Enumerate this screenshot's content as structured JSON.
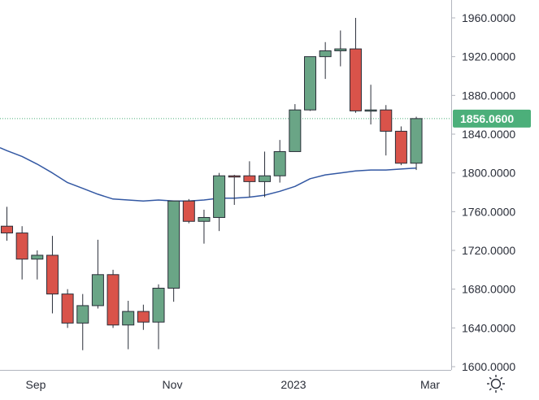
{
  "chart_data": {
    "type": "candlestick",
    "title": "",
    "xlabel": "",
    "ylabel": "",
    "ylim": [
      1600,
      1980
    ],
    "y_ticks": [
      "1960.0000",
      "1920.0000",
      "1880.0000",
      "1840.0000",
      "1800.0000",
      "1760.0000",
      "1720.0000",
      "1680.0000",
      "1640.0000",
      "1600.0000"
    ],
    "x_ticks": [
      "Sep",
      "Nov",
      "2023",
      "Mar"
    ],
    "last_price": {
      "value": 1856.06,
      "label": "1856.0600"
    },
    "colors": {
      "up": "#6aa586",
      "down": "#d9534a",
      "ma_line": "#3358a3",
      "last_price": "#4caf7a",
      "axis": "#b2b5be",
      "text": "#2a2e39"
    },
    "candles": [
      {
        "open": 1745,
        "high": 1765,
        "low": 1730,
        "close": 1738
      },
      {
        "open": 1738,
        "high": 1745,
        "low": 1690,
        "close": 1711
      },
      {
        "open": 1711,
        "high": 1720,
        "low": 1690,
        "close": 1715
      },
      {
        "open": 1715,
        "high": 1735,
        "low": 1655,
        "close": 1675
      },
      {
        "open": 1675,
        "high": 1680,
        "low": 1640,
        "close": 1645
      },
      {
        "open": 1645,
        "high": 1675,
        "low": 1617,
        "close": 1663
      },
      {
        "open": 1663,
        "high": 1731,
        "low": 1660,
        "close": 1695
      },
      {
        "open": 1695,
        "high": 1700,
        "low": 1640,
        "close": 1643
      },
      {
        "open": 1643,
        "high": 1668,
        "low": 1618,
        "close": 1657
      },
      {
        "open": 1657,
        "high": 1664,
        "low": 1638,
        "close": 1646
      },
      {
        "open": 1646,
        "high": 1685,
        "low": 1618,
        "close": 1681
      },
      {
        "open": 1681,
        "high": 1771,
        "low": 1667,
        "close": 1771
      },
      {
        "open": 1771,
        "high": 1773,
        "low": 1748,
        "close": 1750
      },
      {
        "open": 1750,
        "high": 1762,
        "low": 1727,
        "close": 1754
      },
      {
        "open": 1754,
        "high": 1800,
        "low": 1740,
        "close": 1797
      },
      {
        "open": 1797,
        "high": 1798,
        "low": 1767,
        "close": 1796
      },
      {
        "open": 1797,
        "high": 1812,
        "low": 1775,
        "close": 1791
      },
      {
        "open": 1791,
        "high": 1822,
        "low": 1775,
        "close": 1797
      },
      {
        "open": 1797,
        "high": 1834,
        "low": 1790,
        "close": 1822
      },
      {
        "open": 1822,
        "high": 1871,
        "low": 1822,
        "close": 1865
      },
      {
        "open": 1865,
        "high": 1920,
        "low": 1864,
        "close": 1920
      },
      {
        "open": 1920,
        "high": 1935,
        "low": 1897,
        "close": 1926
      },
      {
        "open": 1926,
        "high": 1947,
        "low": 1910,
        "close": 1928
      },
      {
        "open": 1928,
        "high": 1960,
        "low": 1862,
        "close": 1864
      },
      {
        "open": 1864,
        "high": 1891,
        "low": 1850,
        "close": 1865
      },
      {
        "open": 1865,
        "high": 1870,
        "low": 1818,
        "close": 1843
      },
      {
        "open": 1843,
        "high": 1848,
        "low": 1808,
        "close": 1810
      },
      {
        "open": 1810,
        "high": 1858,
        "low": 1803,
        "close": 1856.06
      }
    ],
    "moving_average": [
      1823,
      1817,
      1809,
      1800,
      1790,
      1784,
      1778,
      1773,
      1772,
      1771,
      1772,
      1771,
      1771,
      1772,
      1774,
      1774,
      1775,
      1777,
      1781,
      1786,
      1794,
      1798,
      1800,
      1802,
      1803,
      1803,
      1804,
      1805
    ]
  },
  "settings_icon": "settings-sun-icon"
}
